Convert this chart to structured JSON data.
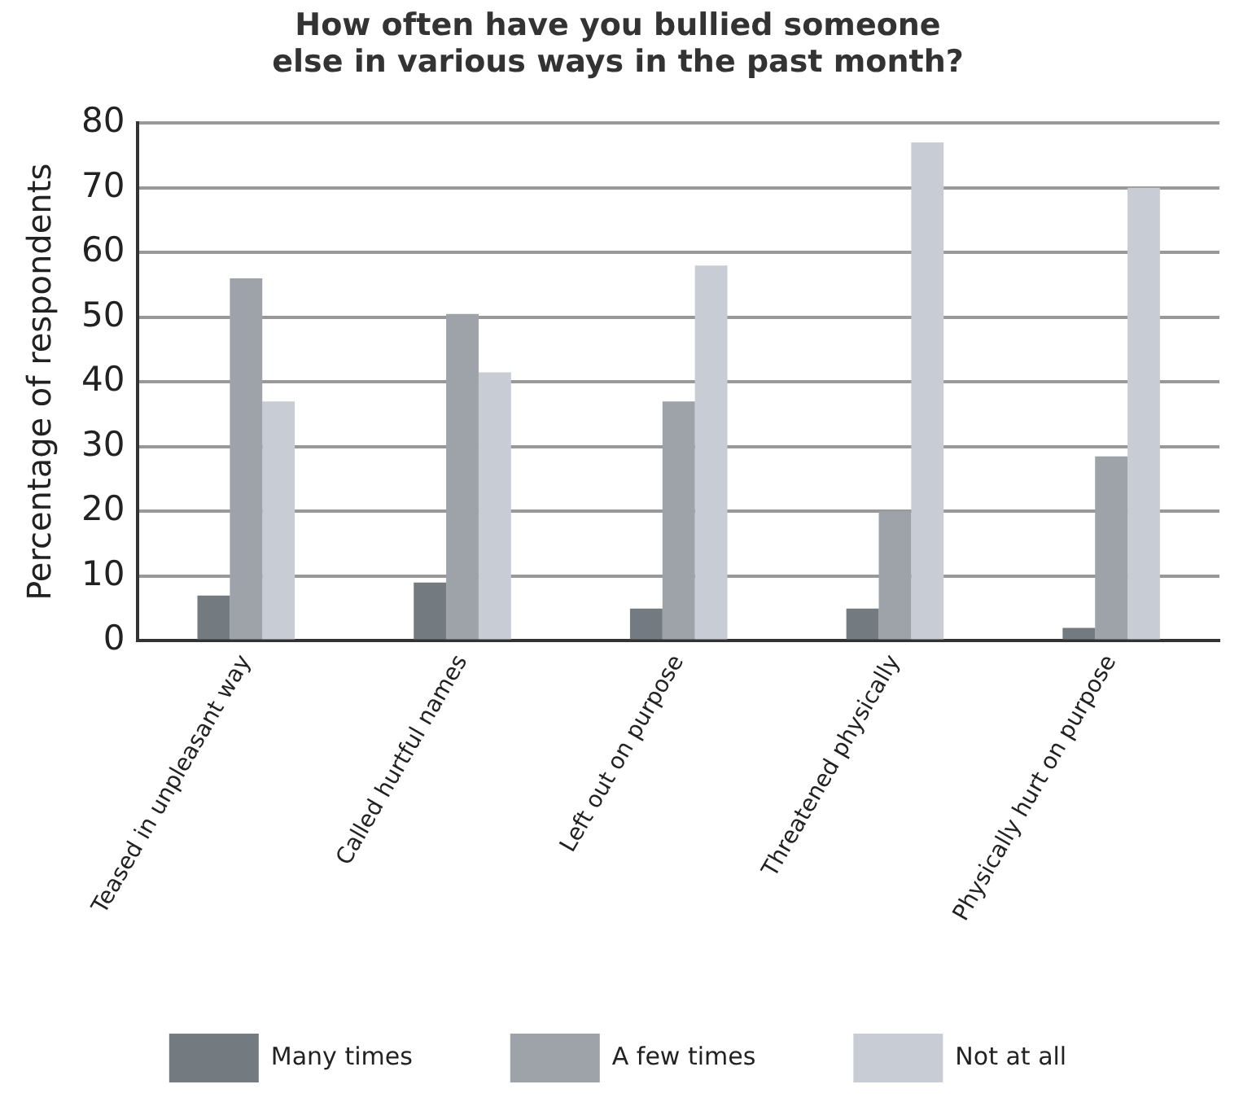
{
  "chart_data": {
    "type": "bar",
    "title": [
      "How often have you bullied someone",
      "else in various ways in the past month?"
    ],
    "ylabel": "Percentage of respondents",
    "categories": [
      "Teased in unpleasant way",
      "Called hurtful names",
      "Left out on purpose",
      "Threatened physically",
      "Physically hurt on purpose"
    ],
    "series": [
      {
        "name": "Many times",
        "color": "#737a80",
        "values": [
          7,
          9,
          5,
          5,
          2
        ]
      },
      {
        "name": "A few times",
        "color": "#9ea3a9",
        "values": [
          56,
          50.5,
          37,
          20,
          28.5
        ]
      },
      {
        "name": "Not at all",
        "color": "#c8ccd4",
        "values": [
          37,
          41.5,
          58,
          77,
          70
        ]
      }
    ],
    "ylim": [
      0,
      80
    ],
    "yticks": [
      0,
      10,
      20,
      30,
      40,
      50,
      60,
      70,
      80
    ],
    "grid": "y",
    "legend": "bottom"
  }
}
